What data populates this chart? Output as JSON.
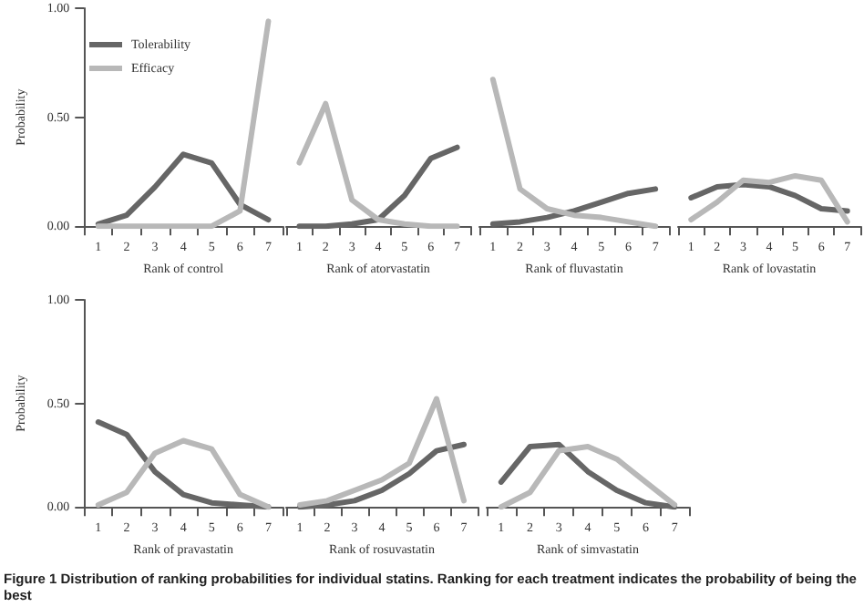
{
  "chart_data": [
    {
      "type": "line",
      "xlabel": "Rank of control",
      "ylabel": "Probability",
      "categories": [
        "1",
        "2",
        "3",
        "4",
        "5",
        "6",
        "7"
      ],
      "ylim": [
        0,
        1
      ],
      "yticks": [
        {
          "value": 0,
          "label": "0.00"
        },
        {
          "value": 0.5,
          "label": "0.50"
        },
        {
          "value": 1,
          "label": "1.00"
        }
      ],
      "legend": "top left",
      "grid": false,
      "marker": "none",
      "line_style": "solid",
      "annotations": [
        "Figure 1  Distribution of ranking probabilities for individual statins. Ranking for each treatment indicates the probability of being the best"
      ],
      "series": [
        {
          "name": "Tolerability",
          "color": "#666666",
          "values": [
            0.01,
            0.05,
            0.18,
            0.33,
            0.29,
            0.1,
            0.03
          ]
        },
        {
          "name": "Efficacy",
          "color": "#b8b8b8",
          "values": [
            0,
            0,
            0,
            0,
            0,
            0.07,
            0.94
          ]
        }
      ]
    },
    {
      "type": "line",
      "xlabel": "Rank of atorvastatin",
      "categories": [
        "1",
        "2",
        "3",
        "4",
        "5",
        "6",
        "7"
      ],
      "ylim": [
        0,
        1
      ],
      "tick_labels": "x",
      "grid": false,
      "marker": "none",
      "line_style": "solid",
      "series": [
        {
          "color": "#666666",
          "values": [
            0,
            0,
            0.01,
            0.03,
            0.14,
            0.31,
            0.36
          ]
        },
        {
          "color": "#b8b8b8",
          "values": [
            0.29,
            0.56,
            0.12,
            0.03,
            0.01,
            0,
            0
          ]
        }
      ]
    },
    {
      "type": "line",
      "xlabel": "Rank of fluvastatin",
      "categories": [
        "1",
        "2",
        "3",
        "4",
        "5",
        "6",
        "7"
      ],
      "ylim": [
        0,
        1
      ],
      "tick_labels": "x",
      "grid": false,
      "marker": "none",
      "line_style": "solid",
      "series": [
        {
          "color": "#666666",
          "values": [
            0.01,
            0.02,
            0.04,
            0.07,
            0.11,
            0.15,
            0.17
          ]
        },
        {
          "color": "#b8b8b8",
          "values": [
            0.67,
            0.17,
            0.08,
            0.05,
            0.04,
            0.02,
            0
          ]
        }
      ]
    },
    {
      "type": "line",
      "xlabel": "Rank of lovastatin",
      "categories": [
        "1",
        "2",
        "3",
        "4",
        "5",
        "6",
        "7"
      ],
      "ylim": [
        0,
        1
      ],
      "tick_labels": "x",
      "grid": false,
      "marker": "none",
      "line_style": "solid",
      "series": [
        {
          "color": "#666666",
          "values": [
            0.13,
            0.18,
            0.19,
            0.18,
            0.14,
            0.08,
            0.07
          ]
        },
        {
          "color": "#b8b8b8",
          "values": [
            0.03,
            0.11,
            0.21,
            0.2,
            0.23,
            0.21,
            0.02
          ]
        }
      ]
    },
    {
      "type": "line",
      "xlabel": "Rank of pravastatin",
      "ylabel": "Probability",
      "categories": [
        "1",
        "2",
        "3",
        "4",
        "5",
        "6",
        "7"
      ],
      "ylim": [
        0,
        1
      ],
      "yticks": [
        {
          "value": 0,
          "label": "0.00"
        },
        {
          "value": 0.5,
          "label": "0.50"
        },
        {
          "value": 1,
          "label": "1.00"
        }
      ],
      "grid": false,
      "marker": "none",
      "line_style": "solid",
      "series": [
        {
          "color": "#666666",
          "values": [
            0.41,
            0.35,
            0.17,
            0.06,
            0.02,
            0.01,
            0
          ]
        },
        {
          "color": "#b8b8b8",
          "values": [
            0.01,
            0.07,
            0.26,
            0.32,
            0.28,
            0.06,
            0
          ]
        }
      ]
    },
    {
      "type": "line",
      "xlabel": "Rank of rosuvastatin",
      "categories": [
        "1",
        "2",
        "3",
        "4",
        "5",
        "6",
        "7"
      ],
      "ylim": [
        0,
        1
      ],
      "tick_labels": "x",
      "grid": false,
      "marker": "none",
      "line_style": "solid",
      "series": [
        {
          "color": "#666666",
          "values": [
            0,
            0.01,
            0.03,
            0.08,
            0.16,
            0.27,
            0.3
          ]
        },
        {
          "color": "#b8b8b8",
          "values": [
            0.01,
            0.03,
            0.08,
            0.13,
            0.21,
            0.52,
            0.03
          ]
        }
      ]
    },
    {
      "type": "line",
      "xlabel": "Rank of simvastatin",
      "categories": [
        "1",
        "2",
        "3",
        "4",
        "5",
        "6",
        "7"
      ],
      "ylim": [
        0,
        1
      ],
      "tick_labels": "x",
      "grid": false,
      "marker": "none",
      "line_style": "solid",
      "series": [
        {
          "color": "#666666",
          "values": [
            0.12,
            0.29,
            0.3,
            0.17,
            0.08,
            0.02,
            0
          ]
        },
        {
          "color": "#b8b8b8",
          "values": [
            0,
            0.07,
            0.27,
            0.29,
            0.23,
            0.12,
            0.01
          ]
        }
      ]
    }
  ]
}
